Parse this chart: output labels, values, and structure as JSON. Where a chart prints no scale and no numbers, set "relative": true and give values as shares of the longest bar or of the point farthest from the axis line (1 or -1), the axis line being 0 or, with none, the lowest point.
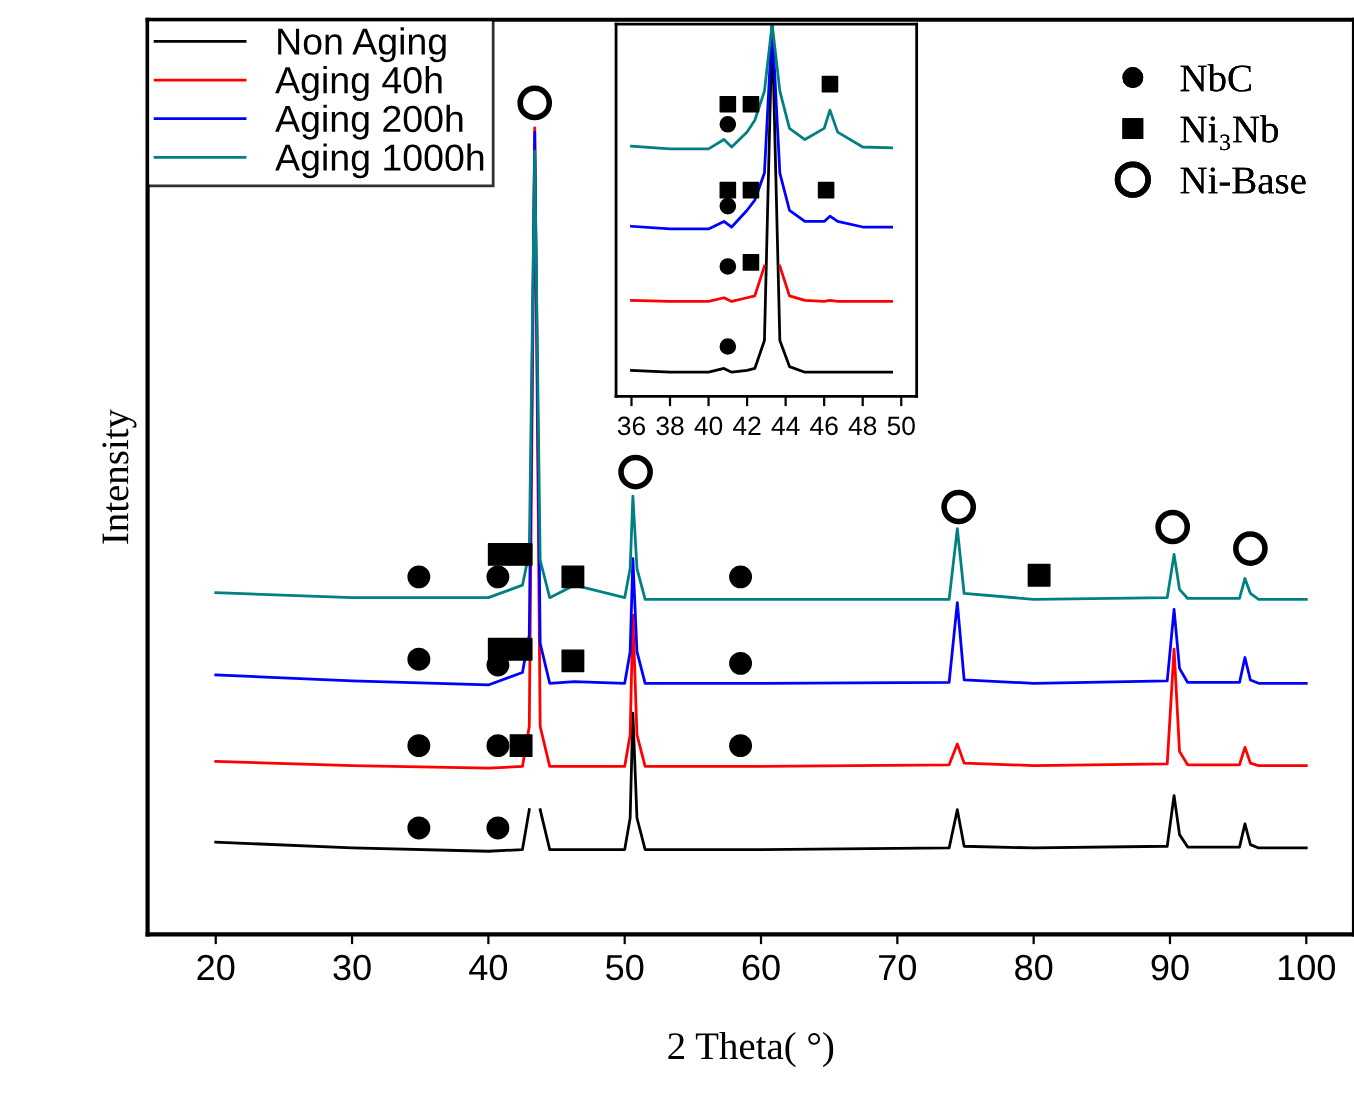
{
  "chart_data": [
    {
      "type": "line",
      "relative": true,
      "xlabel": "2 Theta( °)",
      "ylabel": "Intensity",
      "xlim": [
        15,
        103.5
      ],
      "xticks": [
        20,
        30,
        40,
        50,
        60,
        70,
        80,
        90,
        100
      ],
      "tick_labels": "x",
      "legend": "top left",
      "grid": false,
      "x": [
        20,
        30,
        40,
        42.5,
        43.0,
        43.4,
        43.8,
        44.5,
        46.3,
        50,
        50.4,
        50.6,
        50.9,
        51.5,
        60,
        73.8,
        74.4,
        74.9,
        80,
        89.8,
        90.3,
        90.7,
        91.3,
        95.1,
        95.5,
        95.9,
        96.5,
        100
      ],
      "series": [
        {
          "name": "Non Aging",
          "color": "#000000",
          "values": [
            0.111,
            0.104,
            0.1,
            0.102,
            0.15,
            null,
            0.15,
            0.102,
            0.102,
            0.102,
            0.14,
            0.266,
            0.14,
            0.102,
            0.102,
            0.104,
            0.15,
            0.106,
            0.104,
            0.106,
            0.167,
            0.12,
            0.105,
            0.105,
            0.133,
            0.108,
            0.104,
            0.104
          ]
        },
        {
          "name": "Aging 40h",
          "color": "#ff0000",
          "values": [
            0.208,
            0.203,
            0.2,
            0.202,
            0.25,
            0.97,
            0.25,
            0.202,
            0.202,
            0.202,
            0.24,
            0.384,
            0.24,
            0.202,
            0.202,
            0.204,
            0.229,
            0.206,
            0.203,
            0.205,
            0.343,
            0.22,
            0.204,
            0.204,
            0.225,
            0.206,
            0.203,
            0.203
          ]
        },
        {
          "name": "Aging 200h",
          "color": "#0000ff",
          "values": [
            0.312,
            0.305,
            0.3,
            0.315,
            0.36,
            0.965,
            0.35,
            0.302,
            0.304,
            0.302,
            0.34,
            0.452,
            0.34,
            0.302,
            0.302,
            0.303,
            0.399,
            0.306,
            0.302,
            0.305,
            0.391,
            0.32,
            0.303,
            0.303,
            0.333,
            0.306,
            0.302,
            0.302
          ]
        },
        {
          "name": "Aging 1000h",
          "color": "#008080",
          "values": [
            0.411,
            0.405,
            0.405,
            0.42,
            0.46,
            0.942,
            0.45,
            0.405,
            0.42,
            0.405,
            0.44,
            0.527,
            0.44,
            0.403,
            0.403,
            0.403,
            0.488,
            0.41,
            0.403,
            0.405,
            0.457,
            0.415,
            0.404,
            0.404,
            0.428,
            0.41,
            0.403,
            0.403
          ]
        },
        {
          "type": "scatter",
          "name": "NbC",
          "marker": "circle",
          "color": "#000000",
          "x": [
            34.9,
            40.7,
            58.5,
            34.9,
            40.7,
            58.5,
            34.9,
            40.7,
            58.5,
            34.9,
            40.7
          ],
          "values": [
            0.43,
            0.43,
            0.43,
            0.331,
            0.324,
            0.326,
            0.227,
            0.227,
            0.227,
            0.128,
            0.128
          ]
        },
        {
          "type": "scatter",
          "name": "Ni₃Nb",
          "marker": "square",
          "color": "#000000",
          "x": [
            40.8,
            42.4,
            46.2,
            80.4,
            40.8,
            42.4,
            46.2,
            42.4
          ],
          "values": [
            0.457,
            0.457,
            0.43,
            0.432,
            0.343,
            0.343,
            0.329,
            0.227
          ]
        },
        {
          "type": "scatter",
          "name": "Ni-Base",
          "marker": "circle",
          "color": "#000000",
          "x": [
            43.4,
            50.8,
            74.5,
            90.2,
            95.9
          ],
          "values": [
            1.0,
            0.556,
            0.514,
            0.49,
            0.464
          ]
        }
      ]
    },
    {
      "type": "line",
      "relative": true,
      "xlim": [
        35.2,
        50.8
      ],
      "xticks": [
        36,
        38,
        40,
        42,
        44,
        46,
        48,
        50
      ],
      "tick_labels": "x",
      "grid": false,
      "x": [
        36,
        38,
        40,
        40.8,
        41.2,
        42,
        42.4,
        42.9,
        43.3,
        43.7,
        44.2,
        45,
        46,
        46.3,
        46.7,
        48,
        49.5
      ],
      "series": [
        {
          "color": "#000000",
          "values": [
            0.07,
            0.065,
            0.065,
            0.075,
            0.065,
            0.07,
            0.075,
            0.15,
            1,
            0.15,
            0.08,
            0.065,
            0.065,
            0.065,
            0.065,
            0.065,
            0.065
          ]
        },
        {
          "color": "#ff0000",
          "values": [
            0.258,
            0.255,
            0.255,
            0.265,
            0.255,
            0.265,
            0.27,
            0.35,
            null,
            0.35,
            0.27,
            0.258,
            0.255,
            0.258,
            0.255,
            0.255,
            0.255
          ]
        },
        {
          "color": "#0000ff",
          "values": [
            0.457,
            0.45,
            0.45,
            0.47,
            0.455,
            0.5,
            0.527,
            0.6,
            1,
            0.6,
            0.5,
            0.47,
            0.47,
            0.484,
            0.47,
            0.455,
            0.455
          ]
        },
        {
          "color": "#008080",
          "values": [
            0.672,
            0.665,
            0.665,
            0.69,
            0.67,
            0.71,
            0.742,
            0.82,
            1,
            0.82,
            0.72,
            0.69,
            0.72,
            0.769,
            0.71,
            0.67,
            0.668
          ]
        },
        {
          "type": "scatter",
          "marker": "circle",
          "color": "#000000",
          "x": [
            41.0,
            41.0,
            41.0,
            41.0
          ],
          "values": [
            0.731,
            0.511,
            0.349,
            0.134
          ]
        },
        {
          "type": "scatter",
          "marker": "square",
          "color": "#000000",
          "x": [
            41.0,
            42.2,
            46.3,
            41.0,
            42.2,
            46.1,
            42.2
          ],
          "values": [
            0.785,
            0.785,
            0.839,
            0.554,
            0.554,
            0.554,
            0.36
          ]
        }
      ]
    }
  ]
}
